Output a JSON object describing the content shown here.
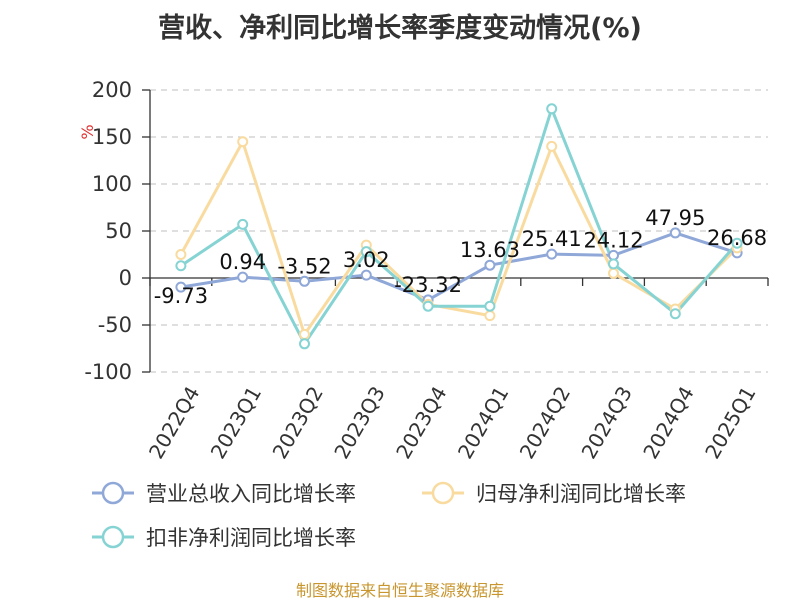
{
  "chart_data": {
    "type": "line",
    "title": "营收、净利同比增长率季度变动情况(%)",
    "ylabel": "%",
    "ylim": [
      -100,
      200
    ],
    "yticks": [
      200,
      150,
      100,
      50,
      0,
      -50,
      -100
    ],
    "grid": true,
    "legend_position": "bottom",
    "categories": [
      "2022Q4",
      "2023Q1",
      "2023Q2",
      "2023Q3",
      "2023Q4",
      "2024Q1",
      "2024Q2",
      "2024Q3",
      "2024Q4",
      "2025Q1"
    ],
    "series": [
      {
        "name": "营业总收入同比增长率",
        "color": "#8fa8d8",
        "values": [
          -9.73,
          0.94,
          -3.52,
          3.02,
          -23.32,
          13.63,
          25.41,
          24.12,
          47.95,
          26.68
        ],
        "data_labels": [
          "-9.73",
          "0.94",
          "-3.52",
          "3.02",
          "-23.32",
          "13.63",
          "25.41",
          "24.12",
          "47.95",
          "26.68"
        ]
      },
      {
        "name": "归母净利润同比增长率",
        "color": "#f9dba0",
        "values": [
          25,
          145,
          -60,
          35,
          -28,
          -40,
          140,
          5,
          -33,
          32
        ]
      },
      {
        "name": "扣非净利润同比增长率",
        "color": "#86d3d4",
        "values": [
          13,
          57,
          -70,
          28,
          -30,
          -30,
          180,
          15,
          -38,
          37
        ]
      }
    ]
  },
  "footer": {
    "source": "制图数据来自恒生聚源数据库"
  }
}
